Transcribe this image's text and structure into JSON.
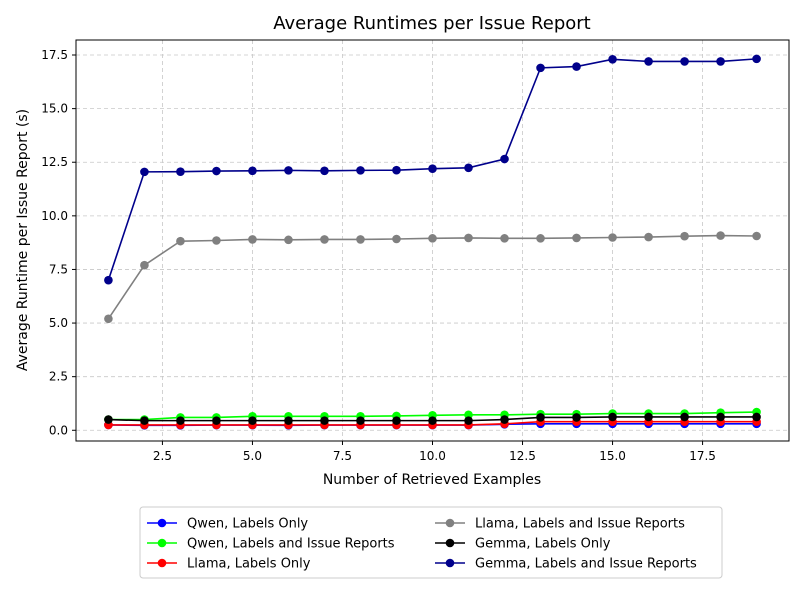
{
  "chart_data": {
    "type": "line",
    "title": "Average Runtimes per Issue Report",
    "xlabel": "Number of Retrieved Examples",
    "ylabel": "Average Runtime per Issue Report (s)",
    "xlim": [
      0.1,
      19.9
    ],
    "ylim": [
      -0.5,
      18.2
    ],
    "xticks": [
      2.5,
      5.0,
      7.5,
      10.0,
      12.5,
      15.0,
      17.5
    ],
    "xtick_labels": [
      "2.5",
      "5.0",
      "7.5",
      "10.0",
      "12.5",
      "15.0",
      "17.5"
    ],
    "yticks": [
      0.0,
      2.5,
      5.0,
      7.5,
      10.0,
      12.5,
      15.0,
      17.5
    ],
    "ytick_labels": [
      "0.0",
      "2.5",
      "5.0",
      "7.5",
      "10.0",
      "12.5",
      "15.0",
      "17.5"
    ],
    "grid": true,
    "legend_placement": "bottom-center",
    "x": [
      1,
      2,
      3,
      4,
      5,
      6,
      7,
      8,
      9,
      10,
      11,
      12,
      13,
      14,
      15,
      16,
      17,
      18,
      19
    ],
    "series": [
      {
        "name": "Qwen, Labels Only",
        "color": "#0000ff",
        "values": [
          0.25,
          0.23,
          0.23,
          0.24,
          0.24,
          0.23,
          0.24,
          0.24,
          0.24,
          0.24,
          0.24,
          0.28,
          0.3,
          0.3,
          0.3,
          0.3,
          0.3,
          0.3,
          0.3
        ]
      },
      {
        "name": "Qwen, Labels and Issue Reports",
        "color": "#00ff00",
        "values": [
          0.5,
          0.5,
          0.6,
          0.6,
          0.65,
          0.65,
          0.65,
          0.65,
          0.67,
          0.7,
          0.72,
          0.72,
          0.75,
          0.75,
          0.78,
          0.78,
          0.78,
          0.82,
          0.85
        ]
      },
      {
        "name": "Llama, Labels Only",
        "color": "#ff0000",
        "values": [
          0.25,
          0.25,
          0.25,
          0.25,
          0.25,
          0.25,
          0.25,
          0.25,
          0.25,
          0.25,
          0.25,
          0.3,
          0.4,
          0.4,
          0.4,
          0.4,
          0.4,
          0.4,
          0.4
        ]
      },
      {
        "name": "Llama, Labels and Issue Reports",
        "color": "#808080",
        "values": [
          5.2,
          7.7,
          8.82,
          8.85,
          8.9,
          8.88,
          8.9,
          8.9,
          8.92,
          8.95,
          8.97,
          8.95,
          8.95,
          8.97,
          8.99,
          9.01,
          9.05,
          9.08,
          9.06
        ]
      },
      {
        "name": "Gemma, Labels Only",
        "color": "#000000",
        "values": [
          0.5,
          0.45,
          0.45,
          0.45,
          0.45,
          0.45,
          0.45,
          0.45,
          0.45,
          0.45,
          0.45,
          0.5,
          0.6,
          0.6,
          0.62,
          0.62,
          0.62,
          0.62,
          0.62
        ]
      },
      {
        "name": "Gemma, Labels and Issue Reports",
        "color": "#00008b",
        "values": [
          7.0,
          12.05,
          12.06,
          12.09,
          12.1,
          12.12,
          12.1,
          12.12,
          12.13,
          12.2,
          12.24,
          12.65,
          16.9,
          16.96,
          17.3,
          17.2,
          17.2,
          17.2,
          17.32
        ]
      }
    ]
  }
}
